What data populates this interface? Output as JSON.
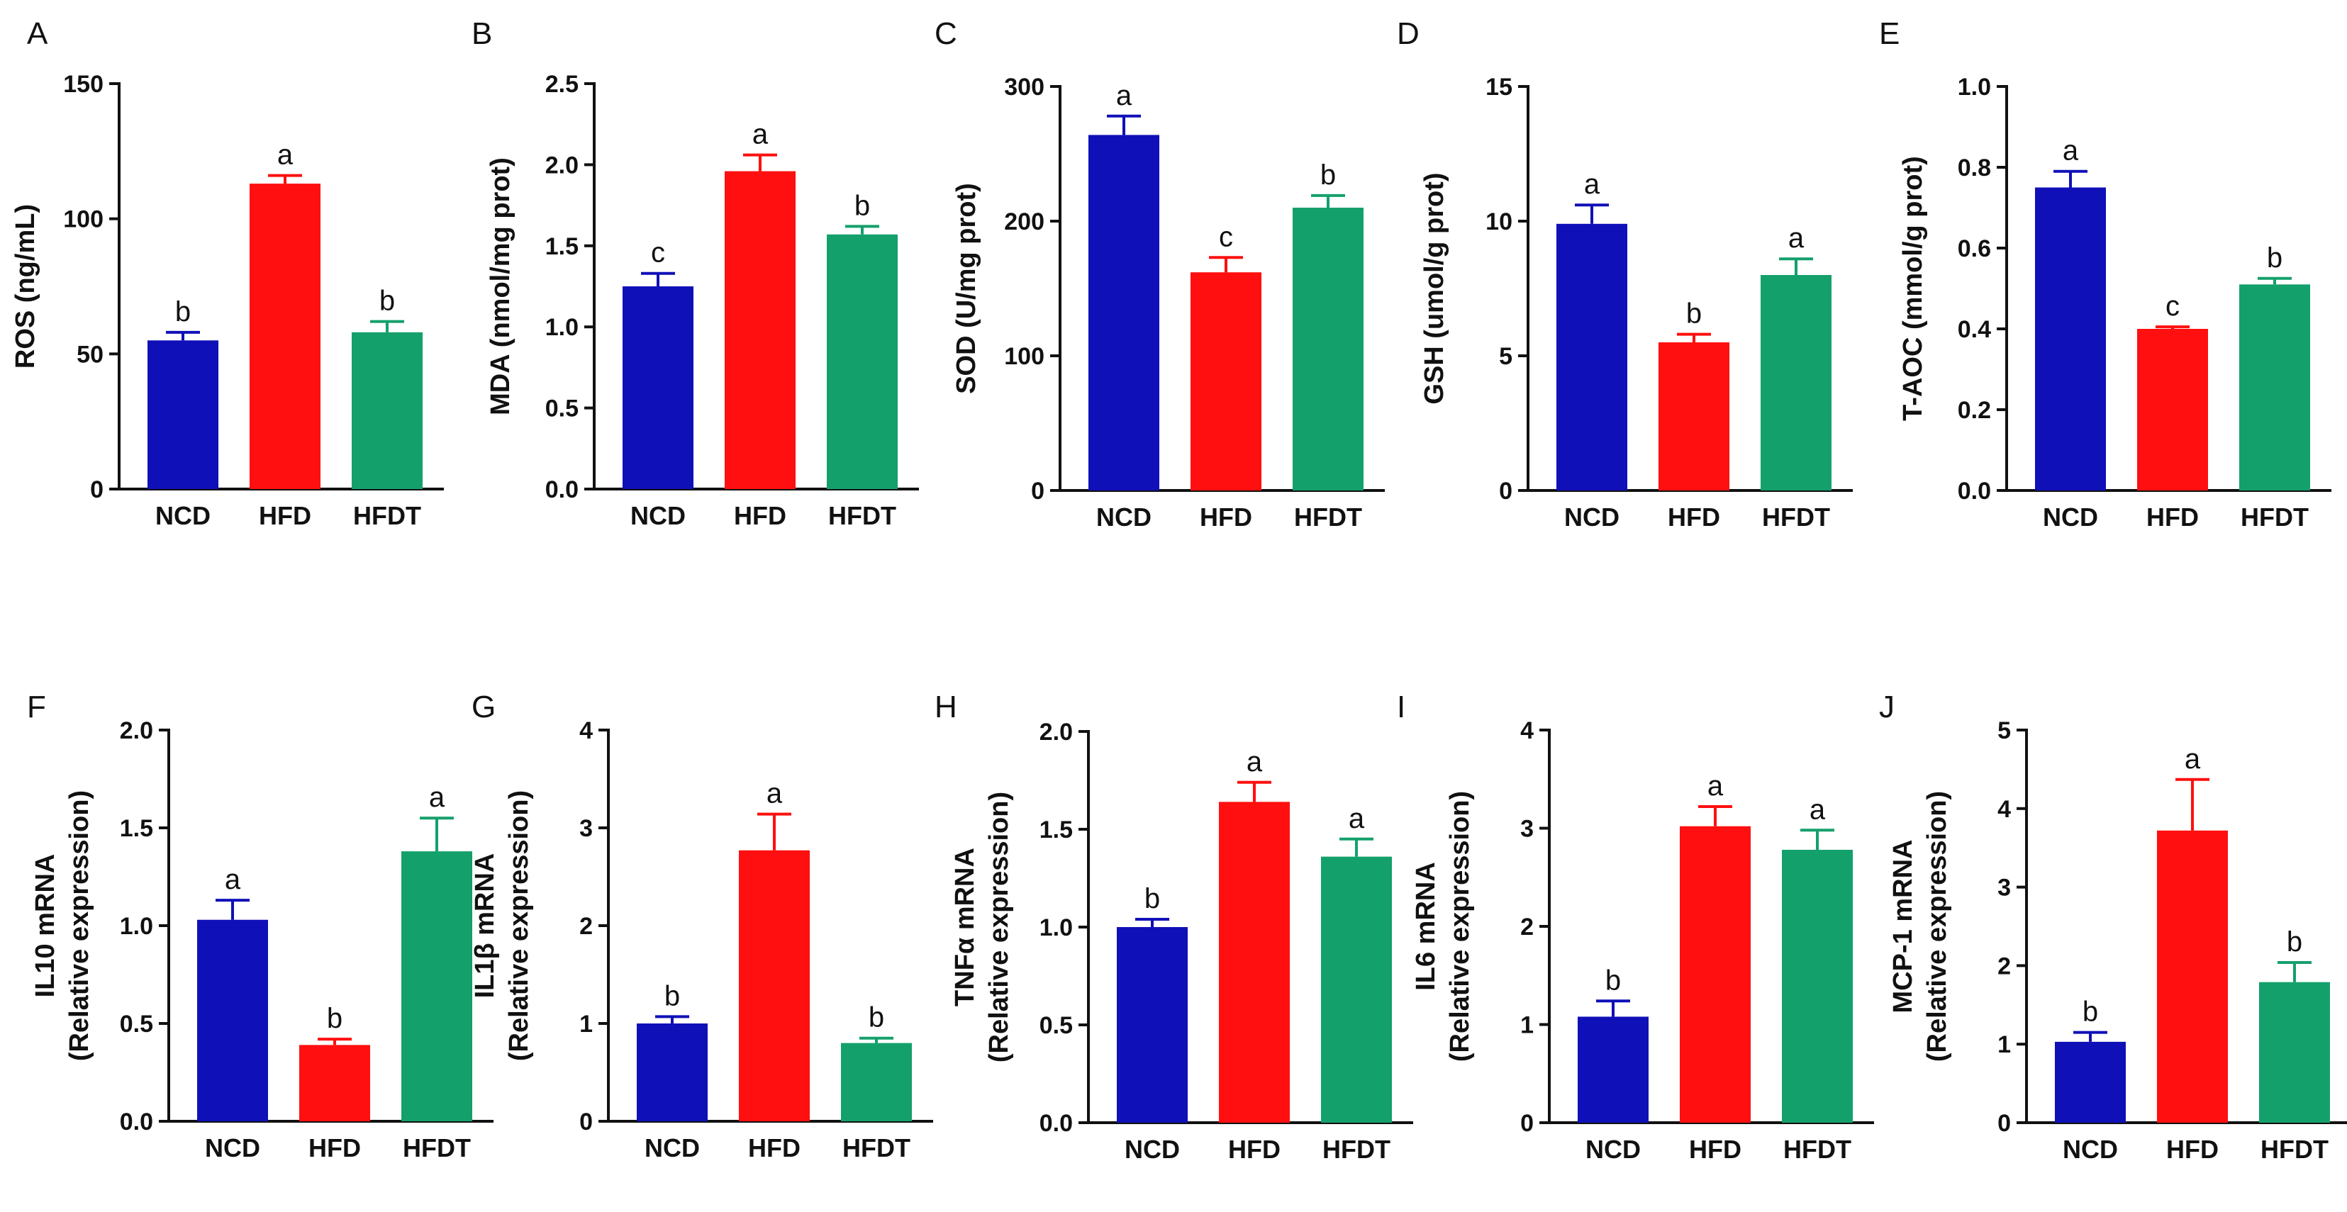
{
  "chart_data": [
    {
      "type": "bar",
      "panel": "A",
      "ylabel_lines": [
        "ROS (ng/mL)"
      ],
      "ylim": [
        0,
        150
      ],
      "yticks": [
        0,
        50,
        100,
        150
      ],
      "categories": [
        "NCD",
        "HFD",
        "HFDT"
      ],
      "values": [
        55,
        113,
        58
      ],
      "errors": [
        3,
        3,
        4
      ],
      "letters": [
        "b",
        "a",
        "b"
      ]
    },
    {
      "type": "bar",
      "panel": "B",
      "ylabel_lines": [
        "MDA (nmol/mg prot)"
      ],
      "ylim": [
        0,
        2.5
      ],
      "yticks": [
        "0.0",
        "0.5",
        "1.0",
        "1.5",
        "2.0",
        "2.5"
      ],
      "categories": [
        "NCD",
        "HFD",
        "HFDT"
      ],
      "values": [
        1.25,
        1.96,
        1.57
      ],
      "errors": [
        0.08,
        0.1,
        0.05
      ],
      "letters": [
        "c",
        "a",
        "b"
      ]
    },
    {
      "type": "bar",
      "panel": "C",
      "ylabel_lines": [
        "SOD (U/mg prot)"
      ],
      "ylim": [
        0,
        300
      ],
      "yticks": [
        0,
        100,
        200,
        300
      ],
      "categories": [
        "NCD",
        "HFD",
        "HFDT"
      ],
      "values": [
        264,
        162,
        210
      ],
      "errors": [
        14,
        11,
        9
      ],
      "letters": [
        "a",
        "c",
        "b"
      ]
    },
    {
      "type": "bar",
      "panel": "D",
      "ylabel_lines": [
        "GSH (umol/g prot)"
      ],
      "ylim": [
        0,
        15
      ],
      "yticks": [
        0,
        5,
        10,
        15
      ],
      "categories": [
        "NCD",
        "HFD",
        "HFDT"
      ],
      "values": [
        9.9,
        5.5,
        8.0
      ],
      "errors": [
        0.7,
        0.3,
        0.6
      ],
      "letters": [
        "a",
        "b",
        "a"
      ]
    },
    {
      "type": "bar",
      "panel": "E",
      "ylabel_lines": [
        "T-AOC (mmol/g prot)"
      ],
      "ylim": [
        0,
        1.0
      ],
      "yticks": [
        "0.0",
        "0.2",
        "0.4",
        "0.6",
        "0.8",
        "1.0"
      ],
      "categories": [
        "NCD",
        "HFD",
        "HFDT"
      ],
      "values": [
        0.75,
        0.4,
        0.51
      ],
      "errors": [
        0.04,
        0.005,
        0.015
      ],
      "letters": [
        "a",
        "c",
        "b"
      ]
    },
    {
      "type": "bar",
      "panel": "F",
      "ylabel_lines": [
        "IL10 mRNA",
        "(Relative expression)"
      ],
      "ylim": [
        0,
        2.0
      ],
      "yticks": [
        "0.0",
        "0.5",
        "1.0",
        "1.5",
        "2.0"
      ],
      "categories": [
        "NCD",
        "HFD",
        "HFDT"
      ],
      "values": [
        1.03,
        0.39,
        1.38
      ],
      "errors": [
        0.1,
        0.03,
        0.17
      ],
      "letters": [
        "a",
        "b",
        "a"
      ]
    },
    {
      "type": "bar",
      "panel": "G",
      "ylabel_lines": [
        "IL1β mRNA",
        "(Relative expression)"
      ],
      "ylim": [
        0,
        4
      ],
      "yticks": [
        0,
        1,
        2,
        3,
        4
      ],
      "categories": [
        "NCD",
        "HFD",
        "HFDT"
      ],
      "values": [
        1.0,
        2.77,
        0.8
      ],
      "errors": [
        0.07,
        0.37,
        0.05
      ],
      "letters": [
        "b",
        "a",
        "b"
      ]
    },
    {
      "type": "bar",
      "panel": "H",
      "ylabel_lines": [
        "TNFα mRNA",
        "(Relative expression)"
      ],
      "ylim": [
        0,
        2.0
      ],
      "yticks": [
        "0.0",
        "0.5",
        "1.0",
        "1.5",
        "2.0"
      ],
      "categories": [
        "NCD",
        "HFD",
        "HFDT"
      ],
      "values": [
        1.0,
        1.64,
        1.36
      ],
      "errors": [
        0.04,
        0.1,
        0.09
      ],
      "letters": [
        "b",
        "a",
        "a"
      ]
    },
    {
      "type": "bar",
      "panel": "I",
      "ylabel_lines": [
        "IL6 mRNA",
        "(Relative expression)"
      ],
      "ylim": [
        0,
        4
      ],
      "yticks": [
        0,
        1,
        2,
        3,
        4
      ],
      "categories": [
        "NCD",
        "HFD",
        "HFDT"
      ],
      "values": [
        1.08,
        3.02,
        2.78
      ],
      "errors": [
        0.16,
        0.2,
        0.2
      ],
      "letters": [
        "b",
        "a",
        "a"
      ]
    },
    {
      "type": "bar",
      "panel": "J",
      "ylabel_lines": [
        "MCP-1 mRNA",
        "(Relative expression)"
      ],
      "ylim": [
        0,
        5
      ],
      "yticks": [
        0,
        1,
        2,
        3,
        4,
        5
      ],
      "categories": [
        "NCD",
        "HFD",
        "HFDT"
      ],
      "values": [
        1.03,
        3.72,
        1.79
      ],
      "errors": [
        0.12,
        0.65,
        0.25
      ],
      "letters": [
        "b",
        "a",
        "b"
      ]
    }
  ],
  "colors": {
    "NCD": "#1010b8",
    "HFD": "#ff0f0f",
    "HFDT": "#14a06b",
    "axis": "#111111"
  }
}
